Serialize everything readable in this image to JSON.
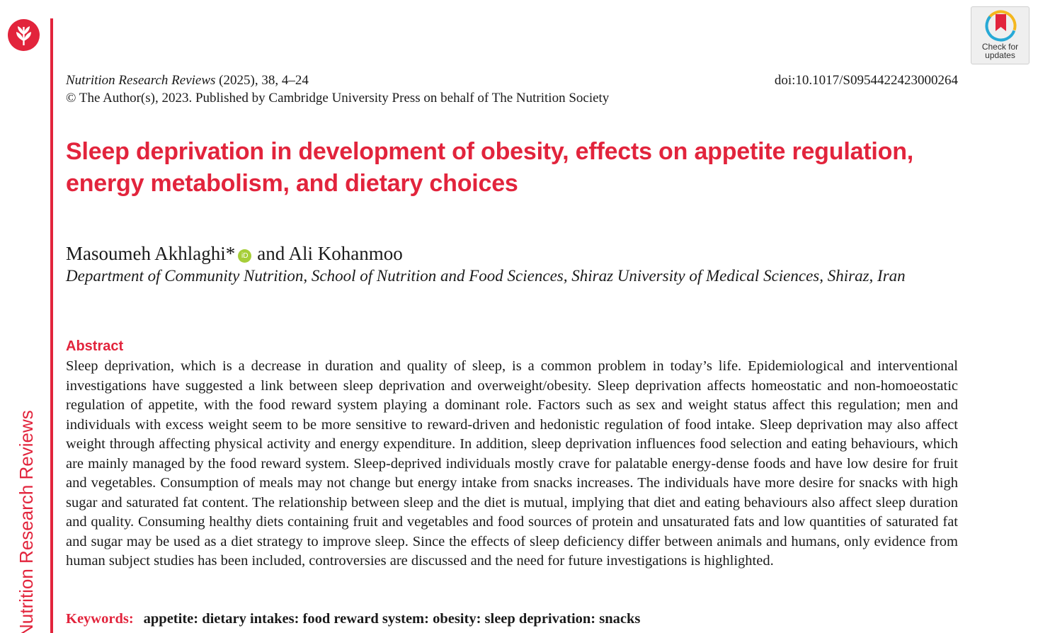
{
  "sidebar": {
    "journal_name": "Nutrition Research Reviews"
  },
  "badge": {
    "line1": "Check for",
    "line2": "updates"
  },
  "header": {
    "journal": "Nutrition Research Reviews",
    "citation": " (2025), 38, 4–24",
    "doi": "doi:10.1017/S0954422423000264",
    "copyright": "© The Author(s), 2023. Published by Cambridge University Press on behalf of The Nutrition Society"
  },
  "article": {
    "title": "Sleep deprivation in development of obesity, effects on appetite regulation, energy metabolism, and dietary choices",
    "author1": "Masoumeh Akhlaghi*",
    "orcid_label": "iD",
    "author_join": "and Ali Kohanmoo",
    "affiliation": "Department of Community Nutrition, School of Nutrition and Food Sciences, Shiraz University of Medical Sciences, Shiraz, Iran"
  },
  "abstract": {
    "heading": "Abstract",
    "text": "Sleep deprivation, which is a decrease in duration and quality of sleep, is a common problem in today’s life. Epidemiological and interventional investigations have suggested a link between sleep deprivation and overweight/obesity. Sleep deprivation affects homeostatic and non-homoeostatic regulation of appetite, with the food reward system playing a dominant role. Factors such as sex and weight status affect this regulation; men and individuals with excess weight seem to be more sensitive to reward-driven and hedonistic regulation of food intake. Sleep deprivation may also affect weight through affecting physical activity and energy expenditure. In addition, sleep deprivation influences food selection and eating behaviours, which are mainly managed by the food reward system. Sleep-deprived individuals mostly crave for palatable energy-dense foods and have low desire for fruit and vegetables. Consumption of meals may not change but energy intake from snacks increases. The individuals have more desire for snacks with high sugar and saturated fat content. The relationship between sleep and the diet is mutual, implying that diet and eating behaviours also affect sleep duration and quality. Consuming healthy diets containing fruit and vegetables and food sources of protein and unsaturated fats and low quantities of saturated fat and sugar may be used as a diet strategy to improve sleep. Since the effects of sleep deficiency differ between animals and humans, only evidence from human subject studies has been included, controversies are discussed and the need for future investigations is highlighted."
  },
  "keywords": {
    "label": "Keywords:",
    "list": "appetite: dietary intakes: food reward system: obesity: sleep deprivation: snacks"
  },
  "colors": {
    "accent": "#e2243c",
    "orcid": "#a6ce39"
  }
}
